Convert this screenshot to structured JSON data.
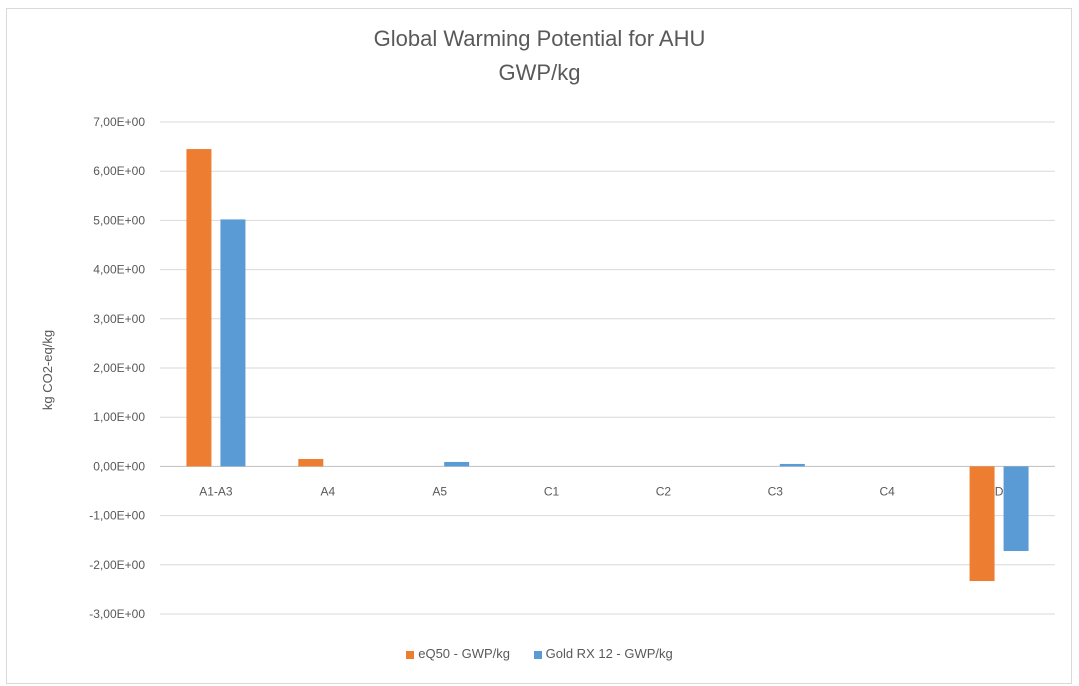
{
  "chart_data": {
    "type": "bar",
    "title": "Global Warming Potential for AHU",
    "subtitle": "GWP/kg",
    "xlabel": "",
    "ylabel": "kg CO2-eq/kg",
    "categories": [
      "A1-A3",
      "A4",
      "A5",
      "C1",
      "C2",
      "C3",
      "C4",
      "D"
    ],
    "series": [
      {
        "name": "eQ50 - GWP/kg",
        "color": "#ED7D31",
        "values": [
          6.45,
          0.15,
          0.0,
          0.0,
          0.0,
          0.0,
          0.0,
          -2.33
        ]
      },
      {
        "name": "Gold RX 12 - GWP/kg",
        "color": "#5B9BD5",
        "values": [
          5.02,
          0.0,
          0.09,
          0.0,
          0.0,
          0.05,
          0.0,
          -1.72
        ]
      }
    ],
    "ylim": [
      -3,
      7
    ],
    "yticks": [
      "7,00E+00",
      "6,00E+00",
      "5,00E+00",
      "4,00E+00",
      "3,00E+00",
      "2,00E+00",
      "1,00E+00",
      "0,00E+00",
      "-1,00E+00",
      "-2,00E+00",
      "-3,00E+00"
    ],
    "grid": true,
    "legend_position": "bottom"
  }
}
